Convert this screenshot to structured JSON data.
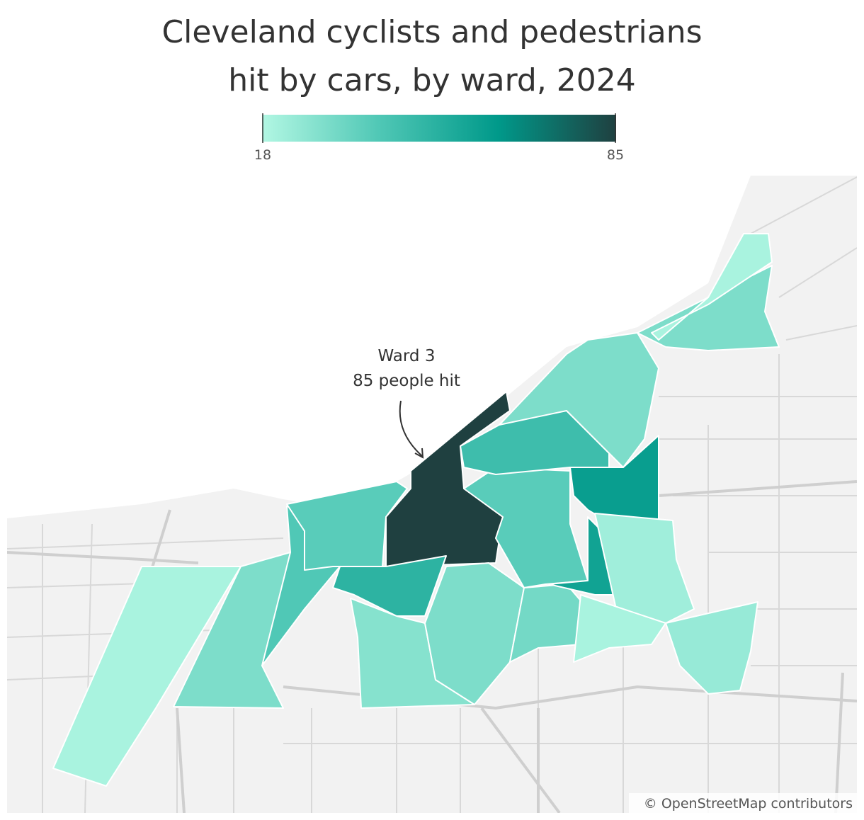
{
  "map": {
    "title_lines": [
      "Cleveland cyclists and pedestrians",
      "hit by cars, by ward, 2024"
    ],
    "legend": {
      "min": 18,
      "max": 85,
      "colors": [
        "#b2f7e3",
        "#4fc7b5",
        "#00998a",
        "#1f4040"
      ]
    },
    "annotation": [
      "Ward 3",
      "85 people hit"
    ],
    "attribution": "© OpenStreetMap contributors",
    "wards": [
      {
        "value": 20
      },
      {
        "value": 30
      },
      {
        "value": 40
      },
      {
        "value": 38
      },
      {
        "value": 85
      },
      {
        "value": 50
      },
      {
        "value": 28
      },
      {
        "value": 30
      },
      {
        "value": 38
      },
      {
        "value": 32
      },
      {
        "value": 45
      },
      {
        "value": 30
      },
      {
        "value": 60
      },
      {
        "value": 58
      },
      {
        "value": 22
      },
      {
        "value": 20
      },
      {
        "value": 24
      },
      {
        "value": 30
      },
      {
        "value": 20
      }
    ]
  }
}
